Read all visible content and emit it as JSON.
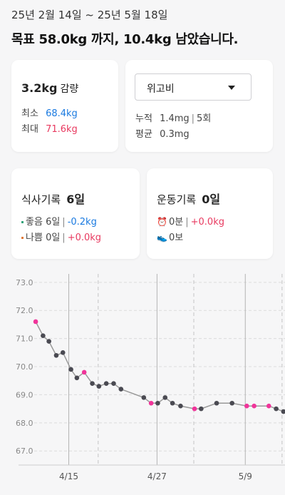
{
  "header": {
    "date_range": "25년 2월 14일 ~ 25년 5월 18일",
    "goal_text": "목표 58.0kg 까지, 10.4kg 남았습니다."
  },
  "weight_card": {
    "loss_value": "3.2kg",
    "loss_label": "감량",
    "min_label": "최소",
    "min_value": "68.4kg",
    "max_label": "최대",
    "max_value": "71.6kg"
  },
  "medication_card": {
    "dropdown_value": "위고비",
    "total_label": "누적",
    "total_value": "1.4mg",
    "total_count": "5회",
    "avg_label": "평균",
    "avg_value": "0.3mg"
  },
  "meal_card": {
    "title": "식사기록",
    "count": "6일",
    "good_label": "좋음",
    "good_days": "6일",
    "good_delta": "-0.2kg",
    "bad_label": "나쁨",
    "bad_days": "0일",
    "bad_delta": "+0.0kg"
  },
  "exercise_card": {
    "title": "운동기록",
    "count": "0일",
    "time_value": "0분",
    "time_delta": "+0.0kg",
    "steps_value": "0보"
  },
  "colors": {
    "blue": "#1a7ae0",
    "red": "#e8395f",
    "point_normal": "#4a4a52",
    "point_highlight": "#f0349a",
    "line": "#999999",
    "good_bullet": "#2fa37a",
    "bad_bullet": "#e07a3a"
  },
  "chart_data": {
    "type": "line",
    "ylim": [
      66.6,
      73.3
    ],
    "y_ticks": [
      "73.0",
      "72.0",
      "71.0",
      "70.0",
      "69.0",
      "68.0",
      "67.0"
    ],
    "x_tick_labels": [
      "4/15",
      "4/27",
      "5/9"
    ],
    "x_ticks_day": [
      15,
      27,
      39
    ],
    "x_range_day": [
      10.3,
      44.4
    ],
    "solid_markers_day": [
      15,
      27,
      39
    ],
    "dashed_markers_day": [
      19,
      32,
      44
    ],
    "points": [
      {
        "day": 10.5,
        "value": 71.6,
        "h": true
      },
      {
        "day": 11.5,
        "value": 71.1,
        "h": false
      },
      {
        "day": 12.3,
        "value": 70.9,
        "h": false
      },
      {
        "day": 13.3,
        "value": 70.4,
        "h": false
      },
      {
        "day": 14.2,
        "value": 70.5,
        "h": false
      },
      {
        "day": 15.3,
        "value": 69.9,
        "h": false
      },
      {
        "day": 16.1,
        "value": 69.6,
        "h": false
      },
      {
        "day": 17.1,
        "value": 69.8,
        "h": true
      },
      {
        "day": 18.2,
        "value": 69.4,
        "h": false
      },
      {
        "day": 19.1,
        "value": 69.3,
        "h": false
      },
      {
        "day": 20.1,
        "value": 69.4,
        "h": false
      },
      {
        "day": 21.1,
        "value": 69.4,
        "h": false
      },
      {
        "day": 22.1,
        "value": 69.2,
        "h": false
      },
      {
        "day": 25.2,
        "value": 68.9,
        "h": false
      },
      {
        "day": 26.2,
        "value": 68.7,
        "h": true
      },
      {
        "day": 27.1,
        "value": 68.7,
        "h": false
      },
      {
        "day": 28.1,
        "value": 68.9,
        "h": false
      },
      {
        "day": 29.1,
        "value": 68.7,
        "h": false
      },
      {
        "day": 30.2,
        "value": 68.6,
        "h": false
      },
      {
        "day": 32.1,
        "value": 68.5,
        "h": true
      },
      {
        "day": 33.0,
        "value": 68.5,
        "h": false
      },
      {
        "day": 35.1,
        "value": 68.7,
        "h": false
      },
      {
        "day": 37.2,
        "value": 68.7,
        "h": false
      },
      {
        "day": 39.2,
        "value": 68.6,
        "h": true
      },
      {
        "day": 40.2,
        "value": 68.6,
        "h": true
      },
      {
        "day": 42.2,
        "value": 68.6,
        "h": true
      },
      {
        "day": 43.2,
        "value": 68.5,
        "h": false
      },
      {
        "day": 44.2,
        "value": 68.4,
        "h": false
      }
    ]
  }
}
